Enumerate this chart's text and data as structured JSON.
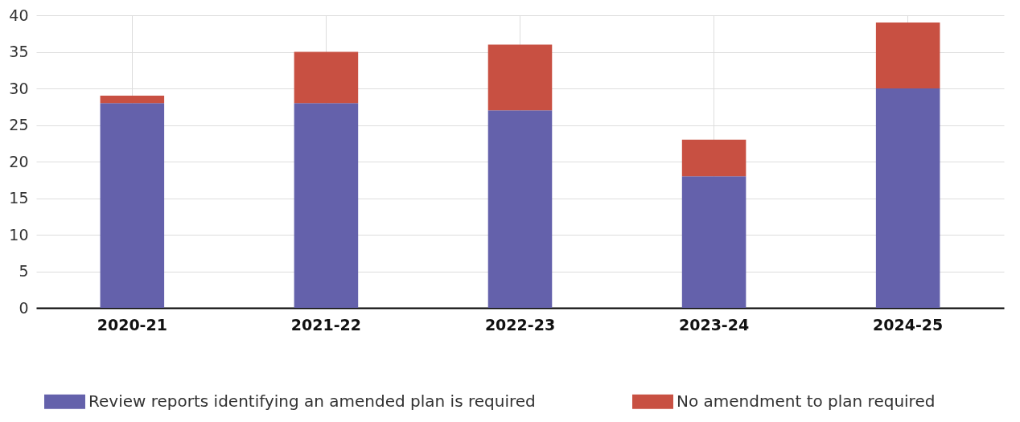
{
  "chart_data": {
    "type": "bar",
    "stacked": true,
    "categories": [
      "2020-21",
      "2021-22",
      "2022-23",
      "2023-24",
      "2024-25"
    ],
    "series": [
      {
        "name": "Review reports identifying an amended plan is required",
        "color": "#6461ab",
        "values": [
          28,
          28,
          27,
          18,
          30
        ]
      },
      {
        "name": "No amendment to plan required",
        "color": "#c85042",
        "values": [
          1,
          7,
          9,
          5,
          9
        ]
      }
    ],
    "ylim": [
      0,
      40
    ],
    "yticks": [
      0,
      5,
      10,
      15,
      20,
      25,
      30,
      35,
      40
    ],
    "grid": true,
    "legend": "bottom"
  }
}
